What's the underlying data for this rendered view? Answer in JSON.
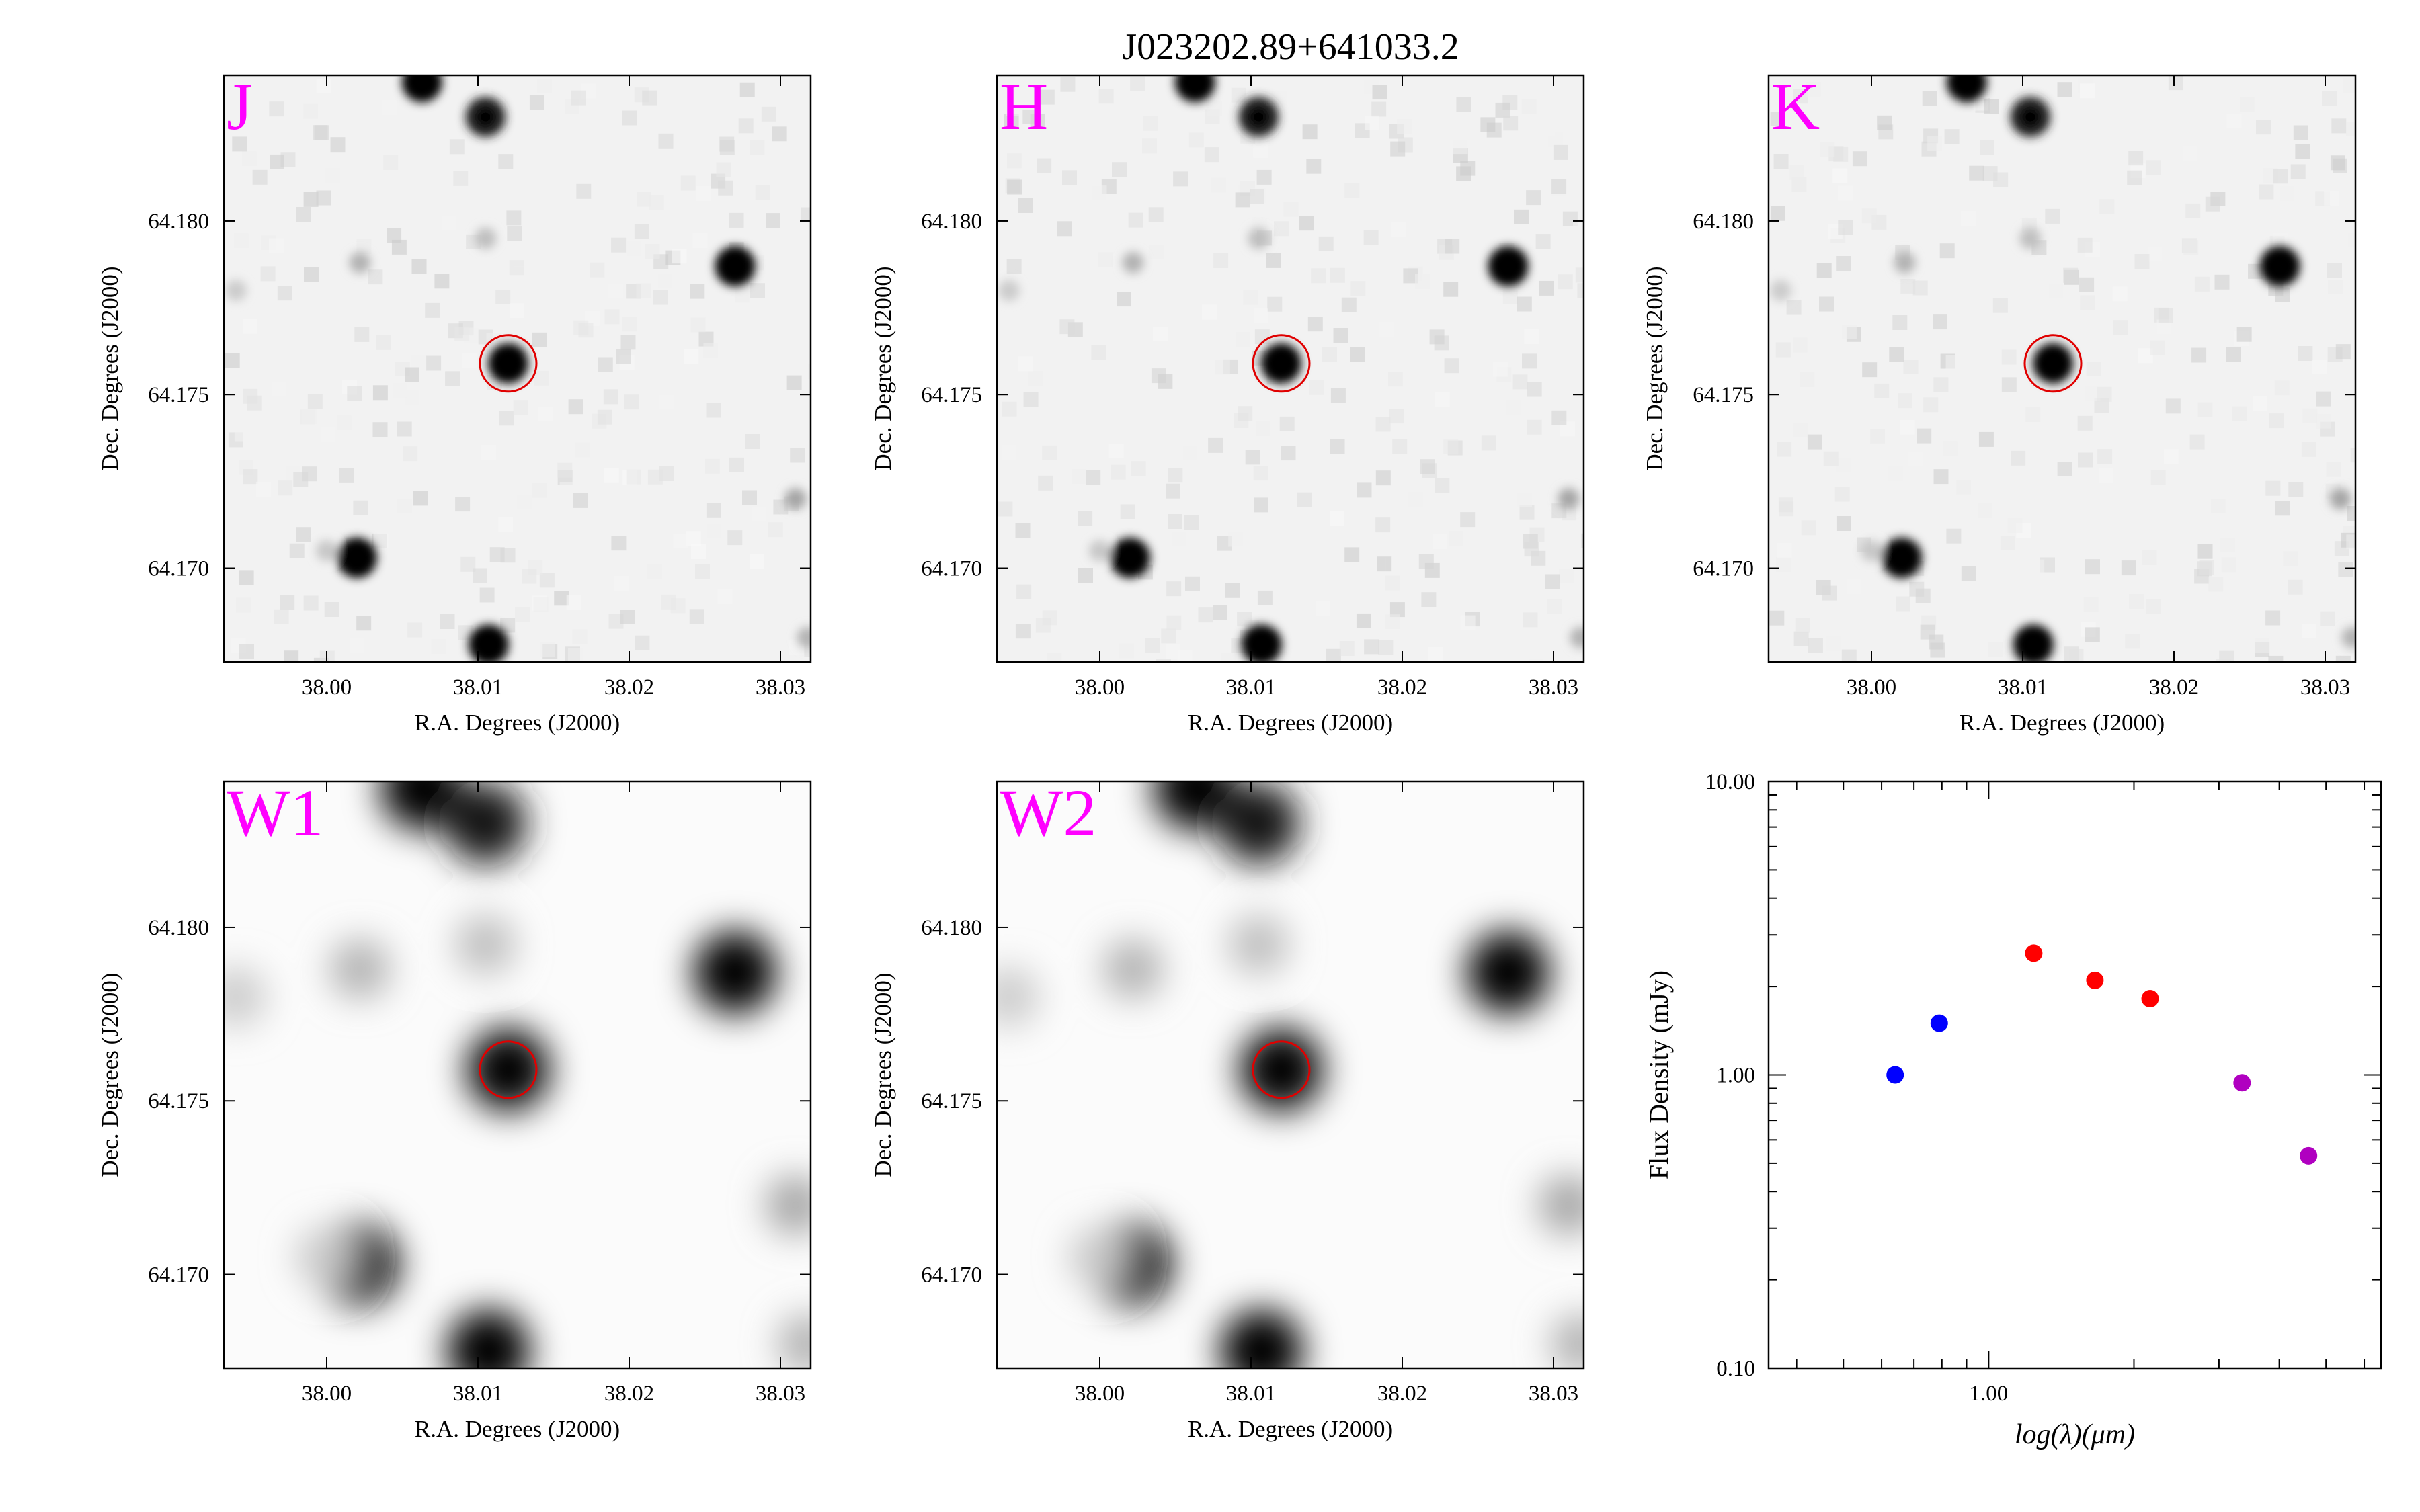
{
  "title": "J023202.89+641033.2",
  "colors": {
    "band_label": "#ff00ff",
    "aperture": "#e00000",
    "sed_blue": "#0000ff",
    "sed_red": "#ff0000",
    "sed_magenta": "#b000c0"
  },
  "cutouts": [
    {
      "band": "J",
      "blur": "low",
      "x_ticks": [
        "38.00",
        "38.01",
        "38.02",
        "38.03"
      ],
      "y_ticks": [
        "64.170",
        "64.175",
        "64.180"
      ],
      "xlabel": "R.A. Degrees (J2000)",
      "ylabel": "Dec. Degrees (J2000)",
      "target": {
        "ra": 38.012,
        "dec": 64.1759
      }
    },
    {
      "band": "H",
      "blur": "low",
      "x_ticks": [
        "38.00",
        "38.01",
        "38.02",
        "38.03"
      ],
      "y_ticks": [
        "64.170",
        "64.175",
        "64.180"
      ],
      "xlabel": "R.A. Degrees (J2000)",
      "ylabel": "Dec. Degrees (J2000)",
      "target": {
        "ra": 38.012,
        "dec": 64.1759
      }
    },
    {
      "band": "K",
      "blur": "low",
      "x_ticks": [
        "38.00",
        "38.01",
        "38.02",
        "38.03"
      ],
      "y_ticks": [
        "64.170",
        "64.175",
        "64.180"
      ],
      "xlabel": "R.A. Degrees (J2000)",
      "ylabel": "Dec. Degrees (J2000)",
      "target": {
        "ra": 38.012,
        "dec": 64.1759
      }
    },
    {
      "band": "W1",
      "blur": "high",
      "x_ticks": [
        "38.00",
        "38.01",
        "38.02",
        "38.03"
      ],
      "y_ticks": [
        "64.170",
        "64.175",
        "64.180"
      ],
      "xlabel": "R.A. Degrees (J2000)",
      "ylabel": "Dec. Degrees (J2000)",
      "target": {
        "ra": 38.012,
        "dec": 64.1759
      }
    },
    {
      "band": "W2",
      "blur": "high",
      "x_ticks": [
        "38.00",
        "38.01",
        "38.02",
        "38.03"
      ],
      "y_ticks": [
        "64.170",
        "64.175",
        "64.180"
      ],
      "xlabel": "R.A. Degrees (J2000)",
      "ylabel": "Dec. Degrees (J2000)",
      "target": {
        "ra": 38.012,
        "dec": 64.1759
      }
    }
  ],
  "chart_data": [
    {
      "type": "scatter",
      "title": "",
      "xlabel": "log(λ)(μm)",
      "ylabel": "Flux Density (mJy)",
      "x_scale": "log",
      "y_scale": "log",
      "xlim": [
        0.35,
        6.5
      ],
      "ylim": [
        0.1,
        10
      ],
      "x_tick_labels": [
        "1.00"
      ],
      "y_tick_labels": [
        "0.10",
        "1.00",
        "10.00"
      ],
      "series": [
        {
          "color": "#0000ff",
          "points": [
            {
              "x": 0.64,
              "y": 1.0
            },
            {
              "x": 0.79,
              "y": 1.5
            }
          ]
        },
        {
          "color": "#ff0000",
          "points": [
            {
              "x": 1.24,
              "y": 2.6
            },
            {
              "x": 1.66,
              "y": 2.1
            },
            {
              "x": 2.16,
              "y": 1.82
            }
          ]
        },
        {
          "color": "#b000c0",
          "points": [
            {
              "x": 3.35,
              "y": 0.94
            },
            {
              "x": 4.6,
              "y": 0.53
            }
          ]
        }
      ]
    }
  ]
}
